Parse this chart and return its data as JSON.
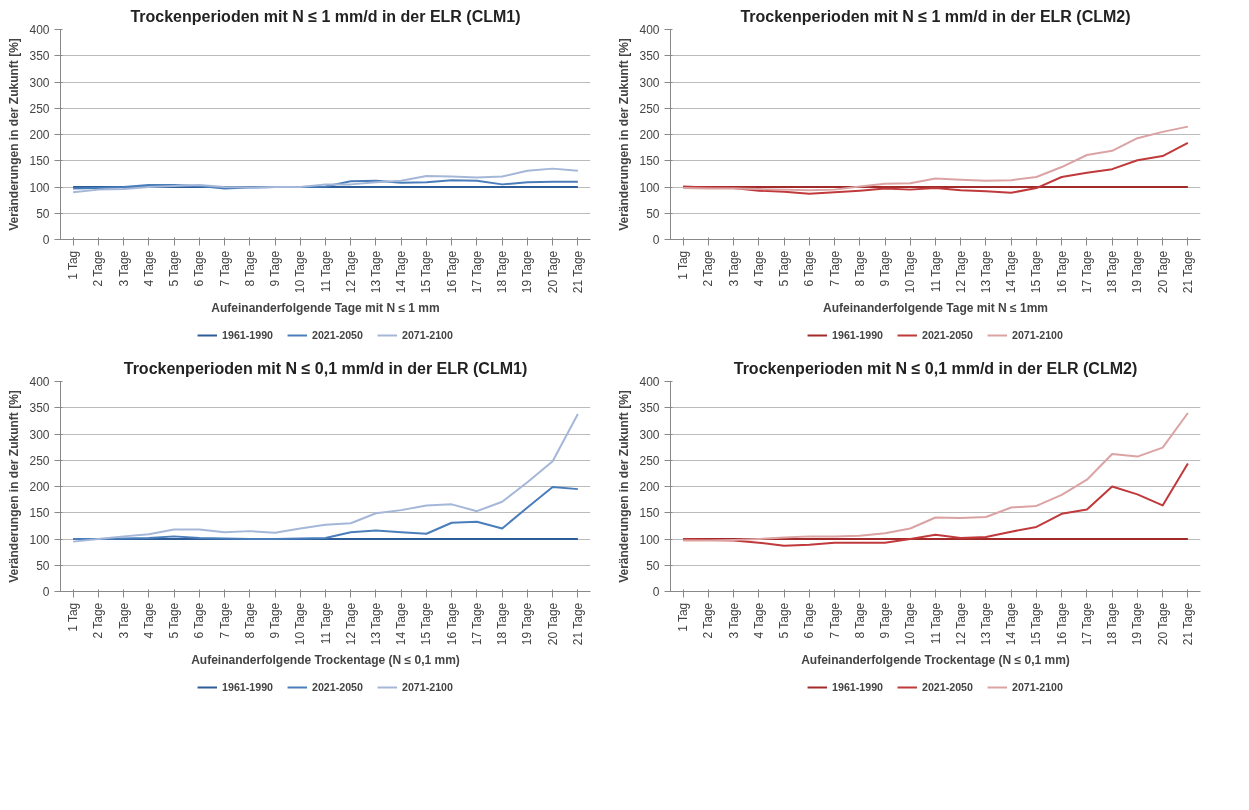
{
  "chart_data": [
    {
      "type": "line",
      "title": "Trockenperioden mit N ≤ 1 mm/d in der ELR (CLM1)",
      "xlabel": "Aufeinanderfolgende Tage mit N ≤ 1 mm",
      "ylabel": "Veränderungen in der Zukunft [%]",
      "categories": [
        "1 Tag",
        "2 Tage",
        "3 Tage",
        "4 Tage",
        "5 Tage",
        "6 Tage",
        "7 Tage",
        "8 Tage",
        "9 Tage",
        "10 Tage",
        "11 Tage",
        "12 Tage",
        "13 Tage",
        "14 Tage",
        "15 Tage",
        "16 Tage",
        "17 Tage",
        "18 Tage",
        "19 Tage",
        "20 Tage",
        "21 Tage"
      ],
      "ylim": [
        0,
        400
      ],
      "yticks": [
        0,
        50,
        100,
        150,
        200,
        250,
        300,
        350,
        400
      ],
      "grid": "y",
      "legend": "bottom",
      "series": [
        {
          "name": "1961-1990",
          "color": "#2c5d96",
          "values": [
            100,
            100,
            100,
            100,
            100,
            100,
            100,
            100,
            100,
            100,
            100,
            100,
            100,
            100,
            100,
            100,
            100,
            100,
            100,
            100,
            100
          ]
        },
        {
          "name": "2021-2050",
          "color": "#4a7ebb",
          "values": [
            97,
            98,
            100,
            104,
            104,
            102,
            97,
            99,
            100,
            100,
            101,
            111,
            112,
            108,
            109,
            113,
            112,
            105,
            109,
            110,
            110
          ]
        },
        {
          "name": "2071-2100",
          "color": "#a5b7d8",
          "values": [
            90,
            95,
            96,
            100,
            102,
            104,
            100,
            99,
            100,
            100,
            105,
            105,
            109,
            112,
            121,
            120,
            118,
            120,
            131,
            135,
            131
          ]
        }
      ]
    },
    {
      "type": "line",
      "title": "Trockenperioden mit N ≤ 1 mm/d in der ELR (CLM2)",
      "xlabel": "Aufeinanderfolgende Tage mit N ≤ 1mm",
      "ylabel": "Veränderungen in der Zukunft [%]",
      "categories": [
        "1 Tag",
        "2 Tage",
        "3 Tage",
        "4 Tage",
        "5 Tage",
        "6 Tage",
        "7 Tage",
        "8 Tage",
        "9 Tage",
        "10 Tage",
        "11 Tage",
        "12 Tage",
        "13 Tage",
        "14 Tage",
        "15 Tage",
        "16 Tage",
        "17 Tage",
        "18 Tage",
        "19 Tage",
        "20 Tage",
        "21 Tage"
      ],
      "ylim": [
        0,
        400
      ],
      "yticks": [
        0,
        50,
        100,
        150,
        200,
        250,
        300,
        350,
        400
      ],
      "grid": "y",
      "legend": "bottom",
      "series": [
        {
          "name": "1961-1990",
          "color": "#a32a2a",
          "values": [
            100,
            100,
            100,
            100,
            100,
            100,
            100,
            100,
            100,
            100,
            100,
            100,
            100,
            100,
            100,
            100,
            100,
            100,
            100,
            100,
            100
          ]
        },
        {
          "name": "2021-2050",
          "color": "#c0393b",
          "values": [
            101,
            99,
            98,
            93,
            91,
            87,
            90,
            93,
            97,
            95,
            98,
            94,
            92,
            89,
            98,
            119,
            127,
            134,
            151,
            159,
            184
          ]
        },
        {
          "name": "2071-2100",
          "color": "#dba3a3",
          "values": [
            98,
            97,
            97,
            96,
            95,
            94,
            95,
            101,
            106,
            107,
            116,
            114,
            112,
            113,
            119,
            138,
            161,
            169,
            193,
            205,
            215
          ]
        }
      ]
    },
    {
      "type": "line",
      "title": "Trockenperioden mit N ≤ 0,1 mm/d in der ELR (CLM1)",
      "xlabel": "Aufeinanderfolgende Trockentage (N ≤ 0,1 mm)",
      "ylabel": "Veränderungen in der Zukunft [%]",
      "categories": [
        "1 Tag",
        "2 Tage",
        "3 Tage",
        "4 Tage",
        "5 Tage",
        "6 Tage",
        "7 Tage",
        "8 Tage",
        "9 Tage",
        "10 Tage",
        "11 Tage",
        "12 Tage",
        "13 Tage",
        "14 Tage",
        "15 Tage",
        "16 Tage",
        "17 Tage",
        "18 Tage",
        "19 Tage",
        "20 Tage",
        "21 Tage"
      ],
      "ylim": [
        0,
        400
      ],
      "yticks": [
        0,
        50,
        100,
        150,
        200,
        250,
        300,
        350,
        400
      ],
      "grid": "y",
      "legend": "bottom",
      "series": [
        {
          "name": "1961-1990",
          "color": "#2c5d96",
          "values": [
            100,
            100,
            100,
            100,
            100,
            100,
            100,
            100,
            100,
            100,
            100,
            100,
            100,
            100,
            100,
            100,
            100,
            100,
            100,
            100,
            100
          ]
        },
        {
          "name": "2021-2050",
          "color": "#4a7ebb",
          "values": [
            100,
            100,
            101,
            102,
            105,
            102,
            101,
            100,
            100,
            101,
            102,
            113,
            116,
            113,
            110,
            131,
            133,
            120,
            160,
            199,
            195
          ]
        },
        {
          "name": "2071-2100",
          "color": "#a5b7d8",
          "values": [
            95,
            100,
            105,
            109,
            118,
            118,
            113,
            115,
            112,
            120,
            127,
            130,
            149,
            155,
            164,
            166,
            153,
            171,
            208,
            248,
            338
          ]
        }
      ]
    },
    {
      "type": "line",
      "title": "Trockenperioden mit N ≤ 0,1 mm/d in der ELR (CLM2)",
      "xlabel": "Aufeinanderfolgende Trockentage (N ≤ 0,1 mm)",
      "ylabel": "Veränderungen in der Zukunft [%]",
      "categories": [
        "1 Tag",
        "2 Tage",
        "3 Tage",
        "4 Tage",
        "5 Tage",
        "6 Tage",
        "7 Tage",
        "8 Tage",
        "9 Tage",
        "10 Tage",
        "11 Tage",
        "12 Tage",
        "13 Tage",
        "14 Tage",
        "15 Tage",
        "16 Tage",
        "17 Tage",
        "18 Tage",
        "19 Tage",
        "20 Tage",
        "21 Tage"
      ],
      "ylim": [
        0,
        400
      ],
      "yticks": [
        0,
        50,
        100,
        150,
        200,
        250,
        300,
        350,
        400
      ],
      "grid": "y",
      "legend": "bottom",
      "series": [
        {
          "name": "1961-1990",
          "color": "#a32a2a",
          "values": [
            100,
            100,
            100,
            100,
            100,
            100,
            100,
            100,
            100,
            100,
            100,
            100,
            100,
            100,
            100,
            100,
            100,
            100,
            100,
            100,
            100
          ]
        },
        {
          "name": "2021-2050",
          "color": "#c0393b",
          "values": [
            100,
            98,
            97,
            93,
            87,
            89,
            93,
            93,
            93,
            100,
            108,
            102,
            104,
            114,
            123,
            148,
            156,
            200,
            185,
            164,
            244
          ]
        },
        {
          "name": "2071-2100",
          "color": "#dba3a3",
          "values": [
            97,
            97,
            98,
            100,
            103,
            105,
            105,
            106,
            111,
            120,
            141,
            140,
            142,
            160,
            163,
            184,
            213,
            262,
            257,
            274,
            340
          ]
        }
      ]
    }
  ]
}
